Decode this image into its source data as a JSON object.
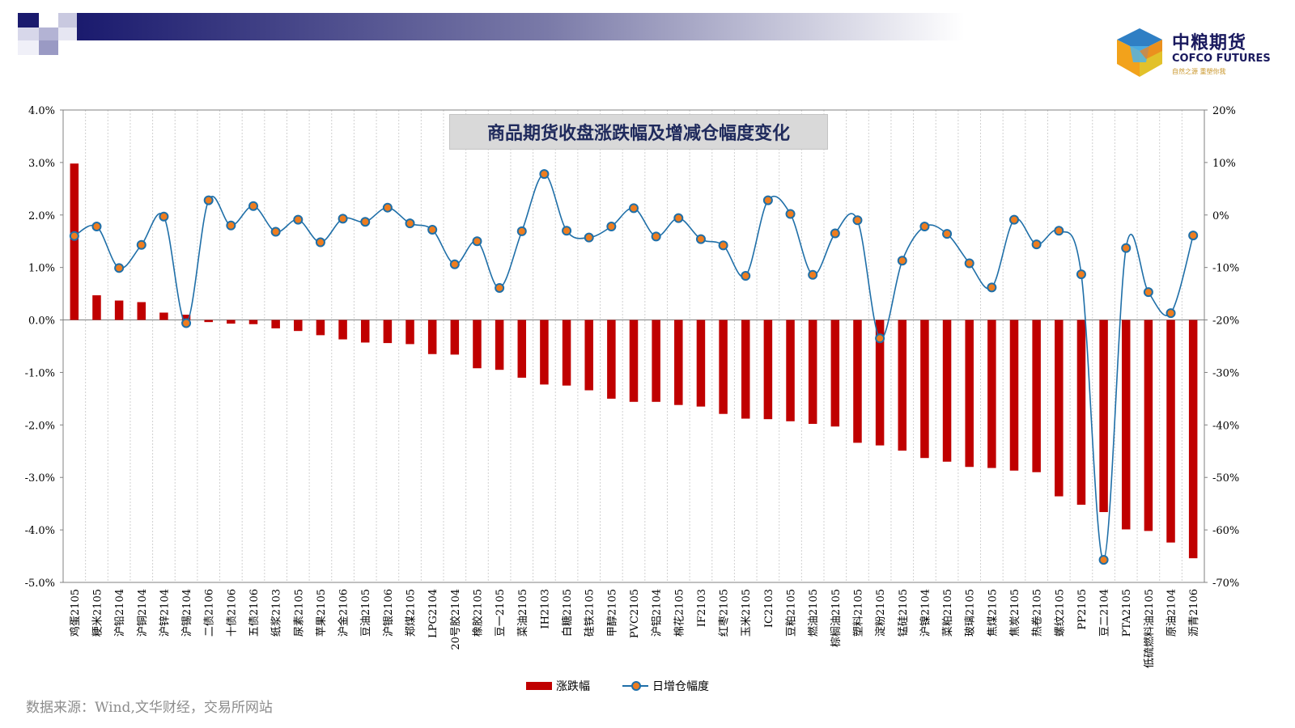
{
  "header": {
    "logo": {
      "name": "中粮期货",
      "name_en": "COFCO FUTURES",
      "slogan": "自然之源 重塑你我"
    }
  },
  "colors": {
    "bar": "#c00000",
    "line": "#1f6fa8",
    "marker_fill": "#ee7d1f",
    "header_dark": "#1a1a6e",
    "title_text": "#1f2a5c"
  },
  "source_note": "数据来源：Wind,文华财经，交易所网站",
  "chart_data": {
    "type": "bar",
    "title": "商品期货收盘涨跌幅及增减仓幅度变化",
    "categories": [
      "鸡蛋2105",
      "粳米2105",
      "沪铅2104",
      "沪铜2104",
      "沪锌2104",
      "沪锡2104",
      "二债2106",
      "十债2106",
      "五债2106",
      "纸浆2103",
      "尿素2105",
      "苹果2105",
      "沪金2106",
      "豆油2105",
      "沪银2106",
      "郑煤2105",
      "LPG2104",
      "20号胶2104",
      "橡胶2105",
      "豆一2105",
      "菜油2105",
      "IH2103",
      "白糖2105",
      "硅铁2105",
      "甲醇2105",
      "PVC2105",
      "沪铝2104",
      "棉花2105",
      "IF2103",
      "红枣2105",
      "玉米2105",
      "IC2103",
      "豆粕2105",
      "燃油2105",
      "棕榈油2105",
      "塑料2105",
      "淀粉2105",
      "锰硅2105",
      "沪镍2104",
      "菜粕2105",
      "玻璃2105",
      "焦煤2105",
      "焦炭2105",
      "热卷2105",
      "螺纹2105",
      "PP2105",
      "豆二2104",
      "PTA2105",
      "低硫燃料油2105",
      "原油2104",
      "沥青2106"
    ],
    "series": [
      {
        "name": "涨跌幅",
        "type": "bar",
        "axis": "left",
        "unit": "%",
        "values": [
          2.98,
          0.47,
          0.37,
          0.34,
          0.14,
          0.1,
          -0.04,
          -0.07,
          -0.08,
          -0.16,
          -0.21,
          -0.29,
          -0.37,
          -0.43,
          -0.44,
          -0.46,
          -0.65,
          -0.66,
          -0.92,
          -0.95,
          -1.1,
          -1.23,
          -1.25,
          -1.34,
          -1.5,
          -1.56,
          -1.56,
          -1.62,
          -1.65,
          -1.79,
          -1.88,
          -1.89,
          -1.93,
          -1.98,
          -2.03,
          -2.34,
          -2.39,
          -2.49,
          -2.63,
          -2.7,
          -2.8,
          -2.82,
          -2.87,
          -2.9,
          -3.36,
          -3.52,
          -3.66,
          -3.99,
          -4.02,
          -4.24,
          -4.54
        ]
      },
      {
        "name": "日增仓幅度",
        "type": "line",
        "axis": "right",
        "unit": "%",
        "values": [
          -4.0,
          -2.2,
          -10.1,
          -5.7,
          -0.3,
          -20.6,
          2.8,
          -2.0,
          1.7,
          -3.2,
          -0.9,
          -5.2,
          -0.7,
          -1.3,
          1.4,
          -1.6,
          -2.8,
          -9.4,
          -5.0,
          -13.9,
          -3.1,
          7.8,
          -3.0,
          -4.3,
          -2.2,
          1.3,
          -4.1,
          -0.6,
          -4.6,
          -5.8,
          -11.6,
          2.8,
          0.2,
          -11.4,
          -3.5,
          -1.0,
          -23.5,
          -8.7,
          -2.2,
          -3.6,
          -9.2,
          -13.8,
          -0.9,
          -5.6,
          -3.0,
          -11.3,
          -65.7,
          -6.3,
          -14.7,
          -18.7,
          -3.9
        ]
      }
    ],
    "y_left": {
      "ylim": [
        -5.0,
        4.0
      ],
      "ticks": [
        "4.0%",
        "3.0%",
        "2.0%",
        "1.0%",
        "0.0%",
        "-1.0%",
        "-2.0%",
        "-3.0%",
        "-4.0%",
        "-5.0%"
      ]
    },
    "y_right": {
      "ylim": [
        -70,
        20
      ],
      "ticks": [
        "20%",
        "10%",
        "0%",
        "-10%",
        "-20%",
        "-30%",
        "-40%",
        "-50%",
        "-60%",
        "-70%"
      ]
    },
    "grid": "vertical",
    "legend": "bottom-center"
  }
}
